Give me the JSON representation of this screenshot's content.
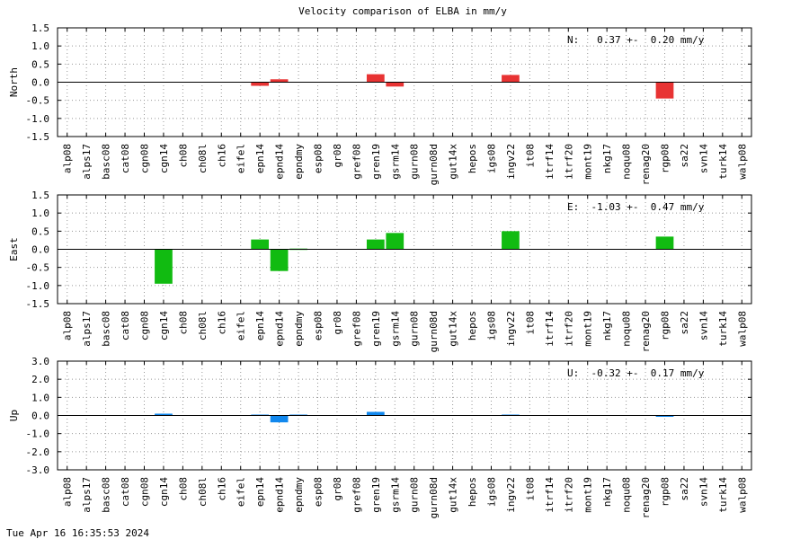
{
  "title": "Velocity comparison of ELBA in mm/y",
  "timestamp": "Tue Apr 16 16:35:53 2024",
  "colors": {
    "north": "#e83333",
    "east": "#11bb11",
    "up": "#1188ee",
    "grid": "#999999"
  },
  "chart_data": [
    {
      "type": "bar",
      "ylabel": "North",
      "annotation": "N:   0.37 +-  0.20 mm/y",
      "ylim": [
        -1.5,
        1.5
      ],
      "yticks": [
        "-1.5",
        "-1.0",
        "-0.5",
        "0.0",
        "0.5",
        "1.0",
        "1.5"
      ],
      "grid": true,
      "categories": [
        "alp08",
        "alps17",
        "basc08",
        "cat08",
        "cgn08",
        "cgn14",
        "ch08",
        "ch08l",
        "ch16",
        "eifel",
        "epn14",
        "epnd14",
        "epndmy",
        "esp08",
        "gr08",
        "gref08",
        "gren19",
        "gsrm14",
        "gurn08",
        "gurn08d",
        "gut14x",
        "hepos",
        "igs08",
        "ingv22",
        "it08",
        "itrf14",
        "itrf20",
        "mont19",
        "nkg17",
        "noqu08",
        "renag20",
        "rgp08",
        "sa22",
        "svn14",
        "turk14",
        "walp08"
      ],
      "values": [
        0,
        0,
        0,
        0,
        0,
        0,
        0,
        0,
        0,
        0,
        -0.1,
        0.08,
        0,
        0,
        0,
        0,
        0.22,
        -0.12,
        0,
        0,
        0,
        0,
        0,
        0.2,
        0,
        0,
        0,
        0,
        0,
        0,
        0,
        -0.45,
        0,
        0,
        0,
        0
      ]
    },
    {
      "type": "bar",
      "ylabel": "East",
      "annotation": "E:  -1.03 +-  0.47 mm/y",
      "ylim": [
        -1.5,
        1.5
      ],
      "yticks": [
        "-1.5",
        "-1.0",
        "-0.5",
        "0.0",
        "0.5",
        "1.0",
        "1.5"
      ],
      "grid": true,
      "categories": [
        "alp08",
        "alps17",
        "basc08",
        "cat08",
        "cgn08",
        "cgn14",
        "ch08",
        "ch08l",
        "ch16",
        "eifel",
        "epn14",
        "epnd14",
        "epndmy",
        "esp08",
        "gr08",
        "gref08",
        "gren19",
        "gsrm14",
        "gurn08",
        "gurn08d",
        "gut14x",
        "hepos",
        "igs08",
        "ingv22",
        "it08",
        "itrf14",
        "itrf20",
        "mont19",
        "nkg17",
        "noqu08",
        "renag20",
        "rgp08",
        "sa22",
        "svn14",
        "turk14",
        "walp08"
      ],
      "values": [
        0,
        0,
        0,
        0,
        0,
        -0.95,
        0,
        0,
        0,
        0,
        0.27,
        -0.6,
        0.02,
        0,
        0,
        0,
        0.27,
        0.45,
        0,
        0,
        0,
        0,
        0,
        0.5,
        0,
        0,
        0,
        0,
        0,
        0,
        0,
        0.35,
        0,
        0,
        0,
        0
      ]
    },
    {
      "type": "bar",
      "ylabel": "Up",
      "annotation": "U:  -0.32 +-  0.17 mm/y",
      "ylim": [
        -3.0,
        3.0
      ],
      "yticks": [
        "-3.0",
        "-2.0",
        "-1.0",
        "0.0",
        "1.0",
        "2.0",
        "3.0"
      ],
      "grid": true,
      "categories": [
        "alp08",
        "alps17",
        "basc08",
        "cat08",
        "cgn08",
        "cgn14",
        "ch08",
        "ch08l",
        "ch16",
        "eifel",
        "epn14",
        "epnd14",
        "epndmy",
        "esp08",
        "gr08",
        "gref08",
        "gren19",
        "gsrm14",
        "gurn08",
        "gurn08d",
        "gut14x",
        "hepos",
        "igs08",
        "ingv22",
        "it08",
        "itrf14",
        "itrf20",
        "mont19",
        "nkg17",
        "noqu08",
        "renag20",
        "rgp08",
        "sa22",
        "svn14",
        "turk14",
        "walp08"
      ],
      "values": [
        0,
        0,
        0,
        0,
        0,
        0.1,
        0,
        0,
        0,
        0,
        0.05,
        -0.38,
        0.05,
        0,
        0,
        0,
        0.2,
        0,
        0,
        0,
        0,
        0,
        0,
        0.05,
        0,
        0,
        0,
        0,
        0,
        0,
        0,
        -0.07,
        0,
        0,
        0,
        0
      ]
    }
  ]
}
